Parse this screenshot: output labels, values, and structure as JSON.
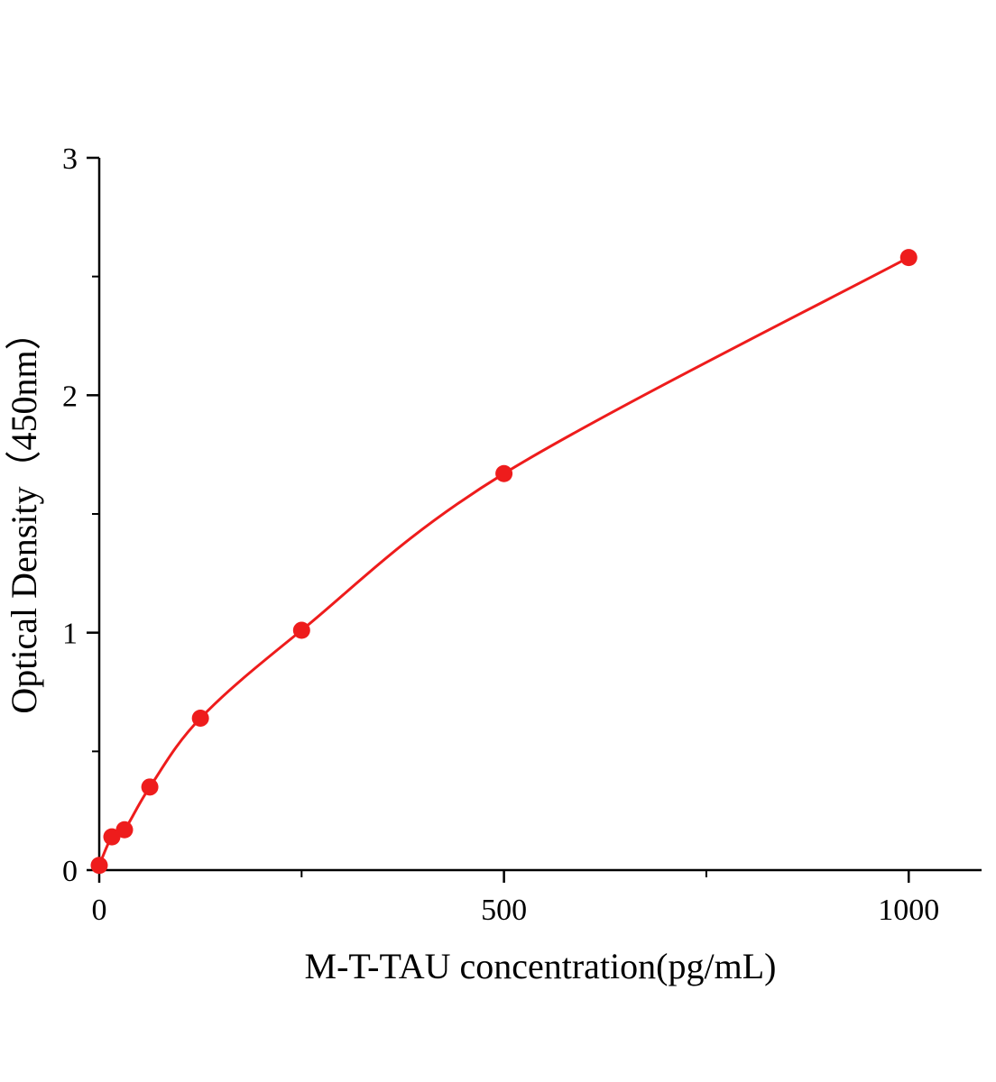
{
  "chart_data": {
    "type": "scatter",
    "title": "",
    "xlabel": "M-T-TAU concentration(pg/mL)",
    "ylabel": "Optical Density（450nm）",
    "x": [
      0,
      15.6,
      31.2,
      62.5,
      125,
      250,
      500,
      1000
    ],
    "y": [
      0.02,
      0.14,
      0.17,
      0.35,
      0.64,
      1.01,
      1.67,
      2.58
    ],
    "xlim": [
      0,
      1090
    ],
    "ylim": [
      0,
      3
    ],
    "x_major_ticks": [
      0,
      500,
      1000
    ],
    "x_minor_ticks": [
      250,
      750
    ],
    "y_major_ticks": [
      0,
      1,
      2,
      3
    ],
    "y_minor_ticks": [
      0.5,
      1.5,
      2.5
    ],
    "x_tick_labels": [
      "0",
      "500",
      "1000"
    ],
    "y_tick_labels": [
      "0",
      "1",
      "2",
      "3"
    ],
    "line_color": "#ee1c1c",
    "marker_color": "#ee1c1c",
    "axis_color": "#000000",
    "marker_radius": 9.5,
    "line_width": 3,
    "grid": false,
    "legend": null
  }
}
